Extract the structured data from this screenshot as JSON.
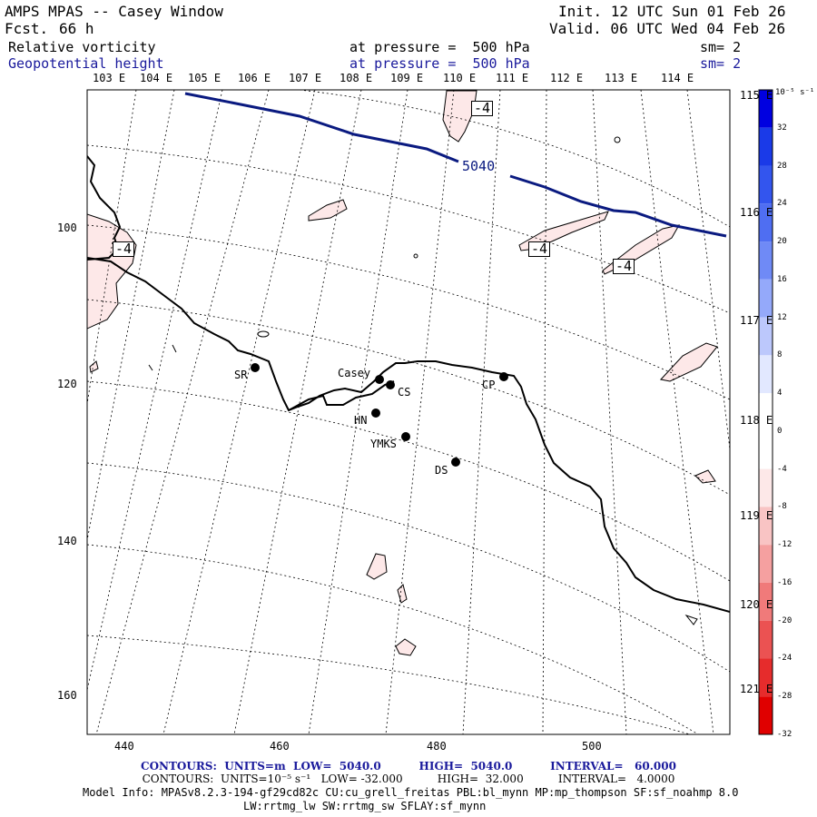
{
  "header": {
    "title": "AMPS MPAS -- Casey Window",
    "forecast_label": "Fcst.",
    "forecast_value": "66 h",
    "init": "Init. 12 UTC Sun 01 Feb 26",
    "valid": "Valid. 06 UTC Wed 04 Feb 26",
    "field1": {
      "name": "Relative vorticity",
      "pressure": "at pressure =  500 hPa",
      "sm": "sm= 2"
    },
    "field2": {
      "name": "Geopotential height",
      "pressure": "at pressure =  500 hPa",
      "sm": "sm= 2"
    }
  },
  "top_lon_labels": [
    "103 E",
    "104 E",
    "105 E",
    "106 E",
    "107 E",
    "108 E",
    "109 E",
    "110 E",
    "111 E",
    "112 E",
    "113 E",
    "114 E"
  ],
  "right_lon_labels": [
    "115 E",
    "116 E",
    "117 E",
    "118 E",
    "119 E",
    "120 E",
    "121 E"
  ],
  "x_axis_labels": [
    "440",
    "460",
    "480",
    "500"
  ],
  "y_axis_labels": [
    "100",
    "120",
    "140",
    "160"
  ],
  "stations": [
    {
      "name": "SR"
    },
    {
      "name": "Casey"
    },
    {
      "name": "CS"
    },
    {
      "name": "CP"
    },
    {
      "name": "HN"
    },
    {
      "name": "YMKS"
    },
    {
      "name": "DS"
    }
  ],
  "contour_labels": {
    "height": "5040",
    "vorticity": [
      "-4",
      "-4",
      "-4",
      "-4"
    ]
  },
  "colorbar": {
    "unit": "10⁻⁵ s⁻¹",
    "labels": [
      "32",
      "28",
      "24",
      "20",
      "16",
      "12",
      "8",
      "4",
      "0",
      "-4",
      "-8",
      "-12",
      "-16",
      "-20",
      "-24",
      "-28",
      "-32"
    ],
    "colors": [
      "#0000e0",
      "#1a3ae8",
      "#3355ee",
      "#4f6ef2",
      "#6f8af6",
      "#94a9fa",
      "#bcc8fc",
      "#e2e8ff",
      "#ffffff",
      "#ffffff",
      "#fde8e8",
      "#f9c4c4",
      "#f5a0a0",
      "#f07a7a",
      "#eb5252",
      "#e62c2c",
      "#e00000"
    ]
  },
  "footer": {
    "line1": "CONTOURS:  UNITS=m  LOW=  5040.0          HIGH=  5040.0          INTERVAL=   60.000",
    "line2": "CONTOURS:  UNITS=10⁻⁵ s⁻¹   LOW= -32.000          HIGH=  32.000          INTERVAL=   4.0000",
    "line3": "Model Info: MPASv8.2.3-194-gf29cd82c CU:cu_grell_freitas PBL:bl_mynn MP:mp_thompson SF:sf_noahmp 8.0",
    "line4": "LW:rrtmg_lw SW:rrtmg_sw SFLAY:sf_mynn"
  },
  "colors": {
    "height_contour": "#0a1a80",
    "coast": "#000000",
    "neg_vort_fill": "#fde8e8",
    "text_blue": "#1a1a9c"
  }
}
